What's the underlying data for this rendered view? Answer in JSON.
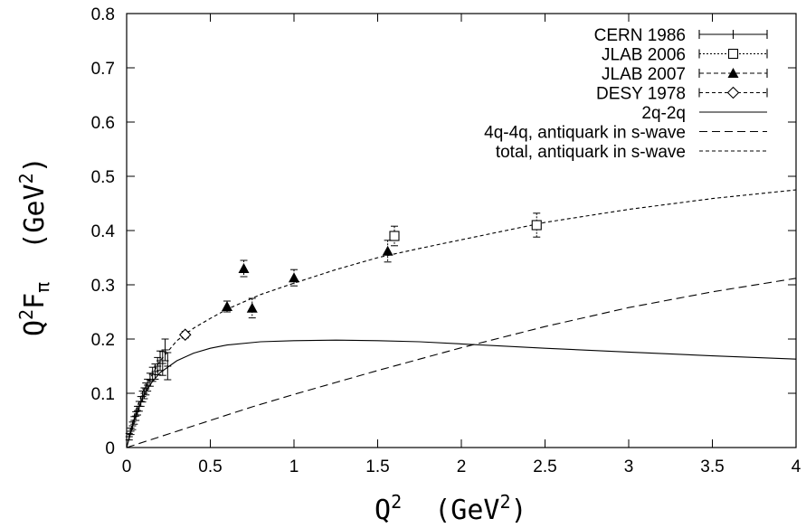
{
  "chart_data": {
    "type": "scatter",
    "xlim": [
      0,
      4
    ],
    "ylim": [
      0,
      0.8
    ],
    "x_ticks": [
      "0",
      "0.5",
      "1",
      "1.5",
      "2",
      "2.5",
      "3",
      "3.5",
      "4"
    ],
    "y_ticks": [
      "0",
      "0.1",
      "0.2",
      "0.3",
      "0.4",
      "0.5",
      "0.6",
      "0.7",
      "0.8"
    ],
    "xlabel": {
      "base": "Q",
      "sup": "2",
      "unit_open": "  (GeV",
      "unit_sup": "2",
      "unit_close": ")"
    },
    "ylabel": {
      "base": "Q",
      "sup": "2",
      "mid": "F",
      "sub": "π",
      "unit_open": "  (GeV",
      "unit_sup": "2",
      "unit_close": ")"
    },
    "grid": false,
    "legend_position": "top-right",
    "series": [
      {
        "name": "CERN 1986",
        "kind": "points",
        "marker": "plus",
        "line_dash": "",
        "points": [
          {
            "x": 0.015,
            "y": 0.02,
            "err": 0.006
          },
          {
            "x": 0.025,
            "y": 0.03,
            "err": 0.006
          },
          {
            "x": 0.035,
            "y": 0.04,
            "err": 0.007
          },
          {
            "x": 0.045,
            "y": 0.05,
            "err": 0.007
          },
          {
            "x": 0.055,
            "y": 0.058,
            "err": 0.008
          },
          {
            "x": 0.065,
            "y": 0.068,
            "err": 0.008
          },
          {
            "x": 0.075,
            "y": 0.076,
            "err": 0.009
          },
          {
            "x": 0.085,
            "y": 0.085,
            "err": 0.009
          },
          {
            "x": 0.095,
            "y": 0.094,
            "err": 0.01
          },
          {
            "x": 0.105,
            "y": 0.1,
            "err": 0.01
          },
          {
            "x": 0.115,
            "y": 0.108,
            "err": 0.011
          },
          {
            "x": 0.125,
            "y": 0.115,
            "err": 0.011
          },
          {
            "x": 0.14,
            "y": 0.125,
            "err": 0.012
          },
          {
            "x": 0.155,
            "y": 0.135,
            "err": 0.013
          },
          {
            "x": 0.17,
            "y": 0.14,
            "err": 0.014
          },
          {
            "x": 0.185,
            "y": 0.15,
            "err": 0.016
          },
          {
            "x": 0.2,
            "y": 0.16,
            "err": 0.018
          },
          {
            "x": 0.215,
            "y": 0.155,
            "err": 0.022
          },
          {
            "x": 0.23,
            "y": 0.18,
            "err": 0.02
          },
          {
            "x": 0.245,
            "y": 0.15,
            "err": 0.025
          }
        ]
      },
      {
        "name": "JLAB 2006",
        "kind": "points",
        "marker": "open-square",
        "line_dash": "2,2",
        "points": [
          {
            "x": 1.6,
            "y": 0.39,
            "err": 0.018
          },
          {
            "x": 2.45,
            "y": 0.41,
            "err": 0.022
          }
        ]
      },
      {
        "name": "JLAB 2007",
        "kind": "points",
        "marker": "filled-triangle",
        "line_dash": "5,3",
        "points": [
          {
            "x": 0.6,
            "y": 0.26,
            "err": 0.01
          },
          {
            "x": 0.7,
            "y": 0.33,
            "err": 0.015
          },
          {
            "x": 0.75,
            "y": 0.257,
            "err": 0.018
          },
          {
            "x": 1.0,
            "y": 0.313,
            "err": 0.015
          },
          {
            "x": 1.56,
            "y": 0.362,
            "err": 0.02
          }
        ]
      },
      {
        "name": "DESY 1978",
        "kind": "points",
        "marker": "open-diamond",
        "line_dash": "4,3",
        "points": [
          {
            "x": 0.35,
            "y": 0.208,
            "err": 0.006
          }
        ]
      },
      {
        "name": "2q-2q",
        "kind": "line",
        "line_dash": "",
        "points": [
          {
            "x": 0,
            "y": 0
          },
          {
            "x": 0.05,
            "y": 0.055
          },
          {
            "x": 0.1,
            "y": 0.095
          },
          {
            "x": 0.15,
            "y": 0.12
          },
          {
            "x": 0.2,
            "y": 0.138
          },
          {
            "x": 0.3,
            "y": 0.16
          },
          {
            "x": 0.4,
            "y": 0.174
          },
          {
            "x": 0.5,
            "y": 0.183
          },
          {
            "x": 0.6,
            "y": 0.189
          },
          {
            "x": 0.8,
            "y": 0.195
          },
          {
            "x": 1.0,
            "y": 0.197
          },
          {
            "x": 1.25,
            "y": 0.198
          },
          {
            "x": 1.5,
            "y": 0.197
          },
          {
            "x": 1.75,
            "y": 0.195
          },
          {
            "x": 2.0,
            "y": 0.191
          },
          {
            "x": 2.5,
            "y": 0.183
          },
          {
            "x": 3.0,
            "y": 0.176
          },
          {
            "x": 3.5,
            "y": 0.169
          },
          {
            "x": 4.0,
            "y": 0.163
          }
        ]
      },
      {
        "name": "4q-4q, antiquark in s-wave",
        "kind": "line",
        "line_dash": "9,5",
        "points": [
          {
            "x": 0,
            "y": 0
          },
          {
            "x": 0.25,
            "y": 0.025
          },
          {
            "x": 0.5,
            "y": 0.05
          },
          {
            "x": 0.75,
            "y": 0.075
          },
          {
            "x": 1.0,
            "y": 0.098
          },
          {
            "x": 1.25,
            "y": 0.12
          },
          {
            "x": 1.5,
            "y": 0.142
          },
          {
            "x": 1.75,
            "y": 0.163
          },
          {
            "x": 2.0,
            "y": 0.184
          },
          {
            "x": 2.5,
            "y": 0.223
          },
          {
            "x": 3.0,
            "y": 0.258
          },
          {
            "x": 3.5,
            "y": 0.287
          },
          {
            "x": 4.0,
            "y": 0.312
          }
        ]
      },
      {
        "name": "total, antiquark in s-wave",
        "kind": "line",
        "line_dash": "4,3",
        "points": [
          {
            "x": 0,
            "y": 0
          },
          {
            "x": 0.05,
            "y": 0.065
          },
          {
            "x": 0.1,
            "y": 0.105
          },
          {
            "x": 0.2,
            "y": 0.16
          },
          {
            "x": 0.3,
            "y": 0.197
          },
          {
            "x": 0.4,
            "y": 0.22
          },
          {
            "x": 0.5,
            "y": 0.238
          },
          {
            "x": 0.6,
            "y": 0.255
          },
          {
            "x": 0.8,
            "y": 0.282
          },
          {
            "x": 1.0,
            "y": 0.303
          },
          {
            "x": 1.25,
            "y": 0.328
          },
          {
            "x": 1.5,
            "y": 0.35
          },
          {
            "x": 1.75,
            "y": 0.367
          },
          {
            "x": 2.0,
            "y": 0.383
          },
          {
            "x": 2.5,
            "y": 0.415
          },
          {
            "x": 3.0,
            "y": 0.439
          },
          {
            "x": 3.5,
            "y": 0.459
          },
          {
            "x": 4.0,
            "y": 0.475
          }
        ]
      }
    ]
  }
}
